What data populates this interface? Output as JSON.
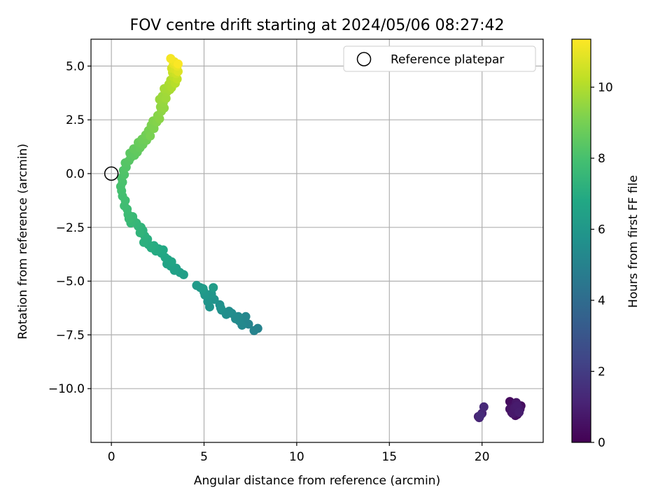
{
  "chart_data": {
    "type": "scatter",
    "title": "FOV centre drift starting at 2024/05/06 08:27:42",
    "xlabel": "Angular distance from reference (arcmin)",
    "ylabel": "Rotation from reference (arcmin)",
    "xlim": [
      -1.1,
      23.3
    ],
    "ylim": [
      -12.5,
      6.25
    ],
    "xticks": [
      0,
      5,
      10,
      15,
      20
    ],
    "xtick_labels": [
      "0",
      "5",
      "10",
      "15",
      "20"
    ],
    "yticks": [
      5.0,
      2.5,
      0.0,
      -2.5,
      -5.0,
      -7.5,
      -10.0
    ],
    "ytick_labels": [
      "5.0",
      "2.5",
      "0.0",
      "−2.5",
      "−5.0",
      "−7.5",
      "−10.0"
    ],
    "grid": true,
    "legend": {
      "placement": "top-right",
      "entries": [
        "Reference platepar"
      ]
    },
    "reference_point": {
      "x": 0.0,
      "y": 0.0
    },
    "colorbar": {
      "label": "Hours from first FF file",
      "range": [
        0,
        11.35
      ],
      "ticks": [
        0,
        2,
        4,
        6,
        8,
        10
      ],
      "tick_labels": [
        "0",
        "2",
        "4",
        "6",
        "8",
        "10"
      ],
      "colormap": "viridis"
    },
    "series": [
      {
        "points": [
          {
            "x": 21.6,
            "y": -11.1,
            "h": 0.05
          },
          {
            "x": 21.8,
            "y": -10.7,
            "h": 0.1
          },
          {
            "x": 22.0,
            "y": -10.9,
            "h": 0.15
          },
          {
            "x": 21.7,
            "y": -11.0,
            "h": 0.2
          },
          {
            "x": 21.9,
            "y": -11.2,
            "h": 0.25
          },
          {
            "x": 21.5,
            "y": -10.6,
            "h": 0.3
          },
          {
            "x": 22.1,
            "y": -10.8,
            "h": 0.35
          },
          {
            "x": 21.6,
            "y": -10.75,
            "h": 0.4
          },
          {
            "x": 21.8,
            "y": -11.25,
            "h": 0.45
          },
          {
            "x": 21.95,
            "y": -11.05,
            "h": 0.5
          },
          {
            "x": 21.7,
            "y": -10.85,
            "h": 0.55
          },
          {
            "x": 21.5,
            "y": -10.95,
            "h": 0.6
          },
          {
            "x": 22.05,
            "y": -10.95,
            "h": 0.65
          },
          {
            "x": 21.85,
            "y": -10.65,
            "h": 0.7
          },
          {
            "x": 21.65,
            "y": -11.15,
            "h": 0.75
          },
          {
            "x": 21.75,
            "y": -10.9,
            "h": 0.8
          },
          {
            "x": 21.9,
            "y": -10.8,
            "h": 0.85
          },
          {
            "x": 22.0,
            "y": -11.1,
            "h": 0.9
          },
          {
            "x": 19.8,
            "y": -11.3,
            "h": 1.0
          },
          {
            "x": 20.0,
            "y": -11.15,
            "h": 1.1
          },
          {
            "x": 19.85,
            "y": -11.35,
            "h": 1.2
          },
          {
            "x": 20.1,
            "y": -10.85,
            "h": 1.3
          },
          {
            "x": 19.9,
            "y": -11.25,
            "h": 1.4
          },
          {
            "x": 7.9,
            "y": -7.2,
            "h": 5.0
          },
          {
            "x": 7.7,
            "y": -7.3,
            "h": 5.05
          },
          {
            "x": 7.4,
            "y": -7.0,
            "h": 5.1
          },
          {
            "x": 7.2,
            "y": -6.9,
            "h": 5.15
          },
          {
            "x": 7.25,
            "y": -6.65,
            "h": 5.2
          },
          {
            "x": 7.05,
            "y": -7.05,
            "h": 5.25
          },
          {
            "x": 6.9,
            "y": -6.85,
            "h": 5.3
          },
          {
            "x": 6.85,
            "y": -6.65,
            "h": 5.35
          },
          {
            "x": 6.7,
            "y": -6.75,
            "h": 5.4
          },
          {
            "x": 6.5,
            "y": -6.5,
            "h": 5.45
          },
          {
            "x": 6.35,
            "y": -6.4,
            "h": 5.5
          },
          {
            "x": 6.2,
            "y": -6.55,
            "h": 5.55
          },
          {
            "x": 5.95,
            "y": -6.35,
            "h": 5.6
          },
          {
            "x": 5.85,
            "y": -6.1,
            "h": 5.65
          },
          {
            "x": 5.9,
            "y": -6.25,
            "h": 5.7
          },
          {
            "x": 5.55,
            "y": -5.85,
            "h": 5.75
          },
          {
            "x": 5.3,
            "y": -6.2,
            "h": 5.8
          },
          {
            "x": 5.2,
            "y": -5.95,
            "h": 5.85
          },
          {
            "x": 5.4,
            "y": -5.6,
            "h": 5.9
          },
          {
            "x": 5.05,
            "y": -5.65,
            "h": 5.95
          },
          {
            "x": 5.0,
            "y": -5.5,
            "h": 6.0
          },
          {
            "x": 4.8,
            "y": -5.3,
            "h": 6.05
          },
          {
            "x": 4.6,
            "y": -5.2,
            "h": 6.1
          },
          {
            "x": 4.95,
            "y": -5.35,
            "h": 6.15
          },
          {
            "x": 5.5,
            "y": -5.3,
            "h": 6.2
          },
          {
            "x": 3.9,
            "y": -4.7,
            "h": 6.3
          },
          {
            "x": 3.7,
            "y": -4.6,
            "h": 6.35
          },
          {
            "x": 3.5,
            "y": -4.4,
            "h": 6.4
          },
          {
            "x": 3.4,
            "y": -4.5,
            "h": 6.45
          },
          {
            "x": 3.2,
            "y": -4.3,
            "h": 6.5
          },
          {
            "x": 3.0,
            "y": -4.2,
            "h": 6.55
          },
          {
            "x": 3.05,
            "y": -4.0,
            "h": 6.6
          },
          {
            "x": 3.25,
            "y": -4.1,
            "h": 6.65
          },
          {
            "x": 2.9,
            "y": -3.9,
            "h": 6.7
          },
          {
            "x": 2.7,
            "y": -3.7,
            "h": 6.75
          },
          {
            "x": 2.8,
            "y": -3.55,
            "h": 6.8
          },
          {
            "x": 2.55,
            "y": -3.5,
            "h": 6.85
          },
          {
            "x": 2.4,
            "y": -3.6,
            "h": 6.9
          },
          {
            "x": 2.3,
            "y": -3.35,
            "h": 6.95
          },
          {
            "x": 2.15,
            "y": -3.45,
            "h": 7.0
          },
          {
            "x": 2.0,
            "y": -3.3,
            "h": 7.05
          },
          {
            "x": 1.95,
            "y": -3.05,
            "h": 7.1
          },
          {
            "x": 1.75,
            "y": -3.2,
            "h": 7.15
          },
          {
            "x": 1.8,
            "y": -2.9,
            "h": 7.2
          },
          {
            "x": 1.7,
            "y": -2.65,
            "h": 7.25
          },
          {
            "x": 1.6,
            "y": -2.5,
            "h": 7.3
          },
          {
            "x": 1.55,
            "y": -2.75,
            "h": 7.35
          },
          {
            "x": 1.45,
            "y": -2.45,
            "h": 7.4
          },
          {
            "x": 1.35,
            "y": -2.3,
            "h": 7.45
          },
          {
            "x": 1.2,
            "y": -2.2,
            "h": 7.5
          },
          {
            "x": 1.05,
            "y": -2.3,
            "h": 7.55
          },
          {
            "x": 1.15,
            "y": -2.0,
            "h": 7.6
          },
          {
            "x": 0.95,
            "y": -2.1,
            "h": 7.65
          },
          {
            "x": 0.9,
            "y": -1.9,
            "h": 7.7
          },
          {
            "x": 0.85,
            "y": -1.65,
            "h": 7.75
          },
          {
            "x": 0.7,
            "y": -1.5,
            "h": 7.8
          },
          {
            "x": 0.75,
            "y": -1.25,
            "h": 7.85
          },
          {
            "x": 0.6,
            "y": -1.05,
            "h": 7.9
          },
          {
            "x": 0.55,
            "y": -0.8,
            "h": 7.95
          },
          {
            "x": 0.5,
            "y": -0.6,
            "h": 8.0
          },
          {
            "x": 0.6,
            "y": -0.4,
            "h": 8.05
          },
          {
            "x": 0.55,
            "y": -0.2,
            "h": 8.1
          },
          {
            "x": 0.7,
            "y": -0.05,
            "h": 8.15
          },
          {
            "x": 0.65,
            "y": 0.15,
            "h": 8.2
          },
          {
            "x": 0.8,
            "y": 0.3,
            "h": 8.25
          },
          {
            "x": 0.75,
            "y": 0.5,
            "h": 8.3
          },
          {
            "x": 0.95,
            "y": 0.6,
            "h": 8.35
          },
          {
            "x": 1.05,
            "y": 0.75,
            "h": 8.4
          },
          {
            "x": 1.0,
            "y": 0.95,
            "h": 8.45
          },
          {
            "x": 1.25,
            "y": 0.85,
            "h": 8.5
          },
          {
            "x": 1.4,
            "y": 1.0,
            "h": 8.55
          },
          {
            "x": 1.2,
            "y": 1.15,
            "h": 8.6
          },
          {
            "x": 1.55,
            "y": 1.2,
            "h": 8.65
          },
          {
            "x": 1.45,
            "y": 1.45,
            "h": 8.7
          },
          {
            "x": 1.7,
            "y": 1.35,
            "h": 8.75
          },
          {
            "x": 1.65,
            "y": 1.6,
            "h": 8.8
          },
          {
            "x": 1.9,
            "y": 1.55,
            "h": 8.85
          },
          {
            "x": 1.85,
            "y": 1.8,
            "h": 8.9
          },
          {
            "x": 2.0,
            "y": 2.0,
            "h": 9.0
          },
          {
            "x": 2.1,
            "y": 1.75,
            "h": 9.05
          },
          {
            "x": 2.15,
            "y": 2.25,
            "h": 9.1
          },
          {
            "x": 2.3,
            "y": 2.1,
            "h": 9.15
          },
          {
            "x": 2.25,
            "y": 2.45,
            "h": 9.2
          },
          {
            "x": 2.45,
            "y": 2.4,
            "h": 9.25
          },
          {
            "x": 2.5,
            "y": 2.7,
            "h": 9.3
          },
          {
            "x": 2.6,
            "y": 2.55,
            "h": 9.35
          },
          {
            "x": 2.7,
            "y": 2.9,
            "h": 9.4
          },
          {
            "x": 2.65,
            "y": 3.1,
            "h": 9.45
          },
          {
            "x": 2.85,
            "y": 3.05,
            "h": 9.5
          },
          {
            "x": 2.8,
            "y": 3.3,
            "h": 9.55
          },
          {
            "x": 2.6,
            "y": 3.45,
            "h": 9.6
          },
          {
            "x": 2.75,
            "y": 3.6,
            "h": 9.65
          },
          {
            "x": 2.95,
            "y": 3.5,
            "h": 9.7
          },
          {
            "x": 3.0,
            "y": 3.8,
            "h": 9.75
          },
          {
            "x": 2.85,
            "y": 3.95,
            "h": 9.8
          },
          {
            "x": 3.15,
            "y": 3.9,
            "h": 9.85
          },
          {
            "x": 3.1,
            "y": 4.15,
            "h": 9.9
          },
          {
            "x": 3.25,
            "y": 4.0,
            "h": 9.95
          },
          {
            "x": 3.2,
            "y": 4.35,
            "h": 10.0
          },
          {
            "x": 3.45,
            "y": 4.2,
            "h": 10.1
          },
          {
            "x": 3.35,
            "y": 4.5,
            "h": 10.2
          },
          {
            "x": 3.55,
            "y": 4.4,
            "h": 10.3
          },
          {
            "x": 3.3,
            "y": 4.7,
            "h": 10.4
          },
          {
            "x": 3.5,
            "y": 4.65,
            "h": 10.5
          },
          {
            "x": 3.25,
            "y": 4.9,
            "h": 10.6
          },
          {
            "x": 3.45,
            "y": 4.85,
            "h": 10.7
          },
          {
            "x": 3.6,
            "y": 4.75,
            "h": 10.8
          },
          {
            "x": 3.35,
            "y": 5.1,
            "h": 10.9
          },
          {
            "x": 3.55,
            "y": 5.0,
            "h": 11.0
          },
          {
            "x": 3.4,
            "y": 5.2,
            "h": 11.1
          },
          {
            "x": 3.2,
            "y": 5.35,
            "h": 11.2
          },
          {
            "x": 3.6,
            "y": 5.1,
            "h": 11.3
          }
        ]
      }
    ]
  }
}
